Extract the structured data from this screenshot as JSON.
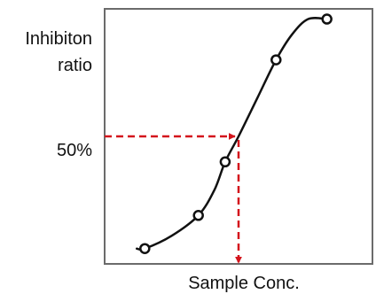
{
  "chart_data": {
    "type": "line",
    "title": "",
    "ylabel_lines": [
      "Inhibiton",
      "ratio"
    ],
    "xlabel": "Sample Conc.",
    "ytick_label": "50%",
    "grid": false,
    "legend": "none",
    "curve_color": "#111111",
    "guide_color": "#d4141c",
    "axis_color": "#6b6b6b",
    "points": [
      {
        "x": 0.15,
        "y": 0.06
      },
      {
        "x": 0.35,
        "y": 0.19
      },
      {
        "x": 0.45,
        "y": 0.4
      },
      {
        "x": 0.64,
        "y": 0.8
      },
      {
        "x": 0.83,
        "y": 0.96
      }
    ],
    "curve": [
      {
        "x": 0.12,
        "y": 0.06
      },
      {
        "x": 0.15,
        "y": 0.06
      },
      {
        "x": 0.25,
        "y": 0.11
      },
      {
        "x": 0.35,
        "y": 0.19
      },
      {
        "x": 0.41,
        "y": 0.29
      },
      {
        "x": 0.45,
        "y": 0.4
      },
      {
        "x": 0.5,
        "y": 0.5
      },
      {
        "x": 0.57,
        "y": 0.65
      },
      {
        "x": 0.64,
        "y": 0.8
      },
      {
        "x": 0.7,
        "y": 0.9
      },
      {
        "x": 0.76,
        "y": 0.96
      },
      {
        "x": 0.83,
        "y": 0.96
      }
    ],
    "ic50": {
      "x": 0.5,
      "y": 0.5
    },
    "xlim": [
      0,
      1
    ],
    "ylim": [
      0,
      1
    ]
  }
}
